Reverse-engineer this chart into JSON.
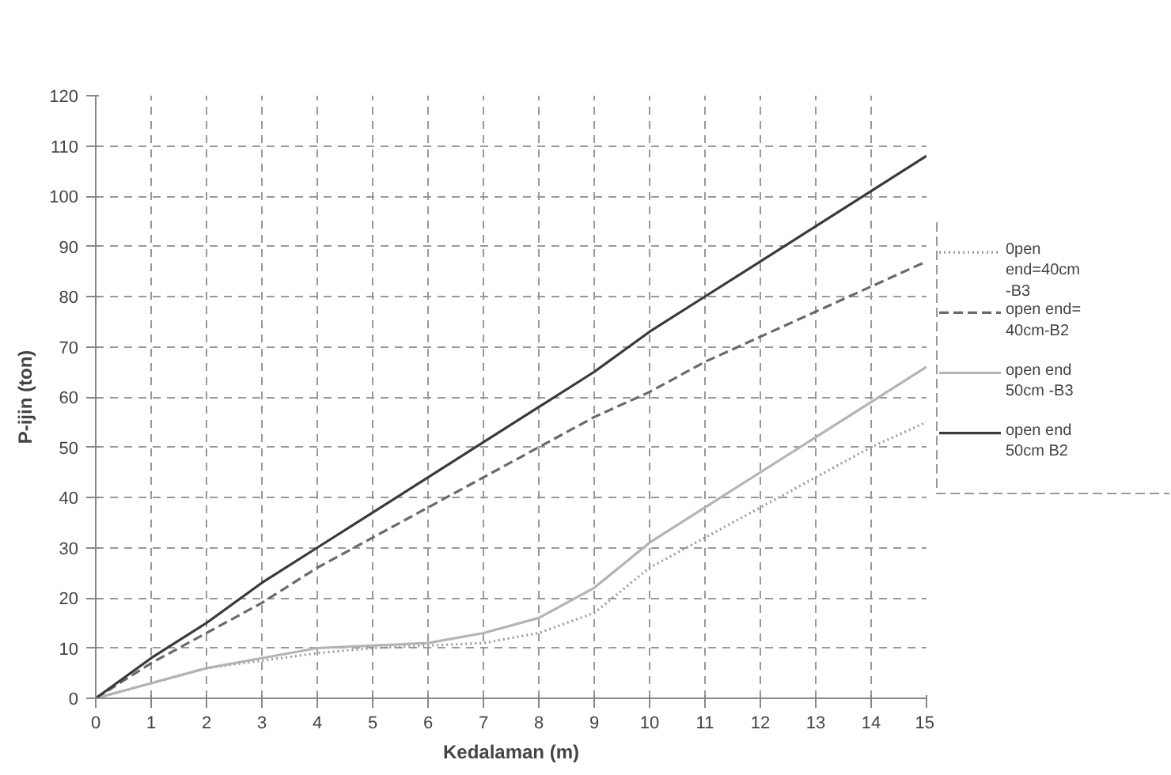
{
  "chart_data": {
    "type": "line",
    "xlabel": "Kedalaman (m)",
    "ylabel": "P-ijin (ton)",
    "x": [
      0,
      1,
      2,
      3,
      4,
      5,
      6,
      7,
      8,
      9,
      10,
      11,
      12,
      13,
      14,
      15
    ],
    "xlim": [
      0,
      15
    ],
    "xticks": [
      0,
      1,
      2,
      3,
      4,
      5,
      6,
      7,
      8,
      9,
      10,
      11,
      12,
      13,
      14,
      15
    ],
    "ylim": [
      0,
      120
    ],
    "yticks": [
      0,
      10,
      20,
      30,
      40,
      50,
      60,
      70,
      80,
      90,
      100,
      110,
      120
    ],
    "grid": true,
    "legend": "right",
    "marker": "none",
    "series": [
      {
        "name": "0pen end=40cm -B3",
        "color": "#9a9a9a",
        "line_style": "dotted",
        "values": [
          0,
          3,
          6,
          7.5,
          9,
          10,
          10.5,
          11,
          13,
          17,
          26,
          32,
          38,
          44,
          50,
          55
        ]
      },
      {
        "name": "open end= 40cm-B2",
        "color": "#6a6a6a",
        "line_style": "dashed",
        "values": [
          0,
          7,
          13,
          19,
          26,
          32,
          38,
          44,
          50,
          56,
          61,
          67,
          72,
          77,
          82,
          87
        ]
      },
      {
        "name": "open end 50cm -B3",
        "color": "#b4b4b4",
        "line_style": "solid",
        "values": [
          0,
          3,
          6,
          8,
          10,
          10.5,
          11,
          13,
          16,
          22,
          31,
          38,
          45,
          52,
          59,
          66
        ]
      },
      {
        "name": "open end 50cm B2",
        "color": "#3a3a3a",
        "line_style": "solid",
        "values": [
          0,
          8,
          15,
          23,
          30,
          37,
          44,
          51,
          58,
          65,
          73,
          80,
          87,
          94,
          101,
          108
        ]
      }
    ]
  }
}
